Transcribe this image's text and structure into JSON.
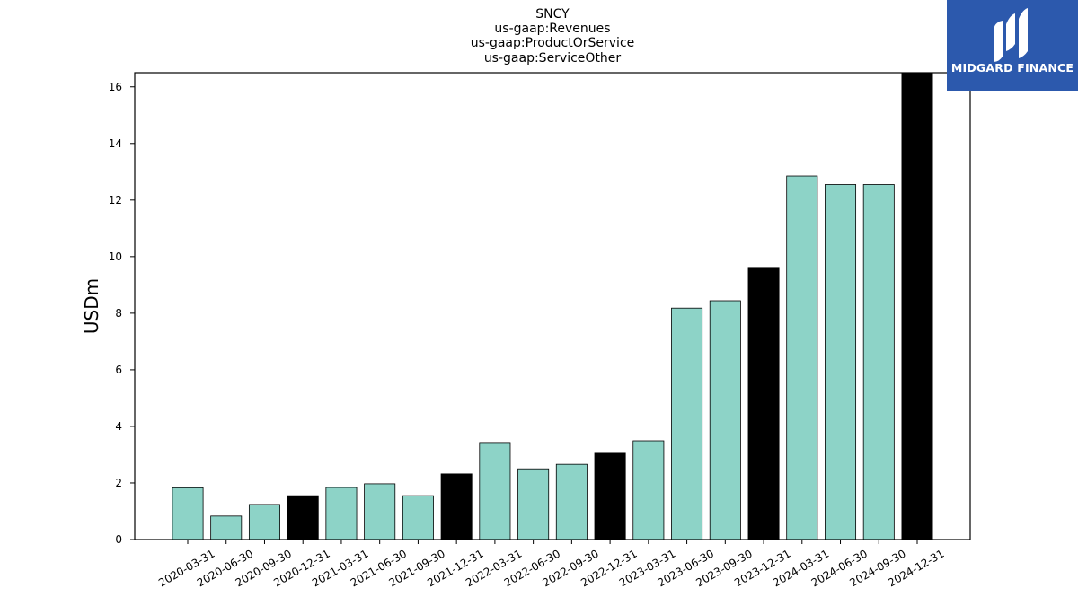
{
  "chart_data": {
    "type": "bar",
    "title_lines": [
      "SNCY",
      "us-gaap:Revenues",
      "us-gaap:ProductOrService",
      "us-gaap:ServiceOther"
    ],
    "ylabel": "USDm",
    "xlabel": "",
    "ylim": [
      0,
      16.5
    ],
    "yticks": [
      0,
      2,
      4,
      6,
      8,
      10,
      12,
      14,
      16
    ],
    "categories": [
      "2020-03-31",
      "2020-06-30",
      "2020-09-30",
      "2020-12-31",
      "2021-03-31",
      "2021-06-30",
      "2021-09-30",
      "2021-12-31",
      "2022-03-31",
      "2022-06-30",
      "2022-09-30",
      "2022-12-31",
      "2023-03-31",
      "2023-06-30",
      "2023-09-30",
      "2023-12-31",
      "2024-03-31",
      "2024-06-30",
      "2024-09-30",
      "2024-12-31"
    ],
    "values": [
      1.83,
      0.83,
      1.24,
      1.55,
      1.84,
      1.97,
      1.55,
      2.32,
      3.43,
      2.5,
      2.66,
      3.05,
      3.49,
      8.18,
      8.44,
      9.62,
      12.85,
      12.55,
      12.55,
      16.6
    ],
    "bar_colors": [
      "#8dd3c7",
      "#8dd3c7",
      "#8dd3c7",
      "#000000",
      "#8dd3c7",
      "#8dd3c7",
      "#8dd3c7",
      "#000000",
      "#8dd3c7",
      "#8dd3c7",
      "#8dd3c7",
      "#000000",
      "#8dd3c7",
      "#8dd3c7",
      "#8dd3c7",
      "#000000",
      "#8dd3c7",
      "#8dd3c7",
      "#8dd3c7",
      "#000000"
    ],
    "grid": false,
    "legend": "none"
  },
  "logo": {
    "text": "MIDGARD FINANCE",
    "background": "#2c59ad",
    "icon": "midgard-logo-icon"
  }
}
